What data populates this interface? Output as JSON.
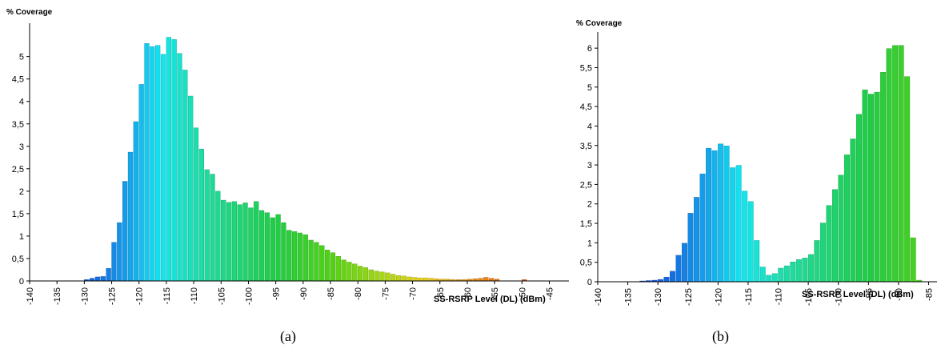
{
  "chart_data": [
    {
      "type": "bar",
      "panel_caption": "(a)",
      "ylabel": "% Coverage",
      "xlabel": "SS-RSRP Level (DL) (dBm)",
      "xlim": [
        -140,
        -42
      ],
      "ylim": [
        0,
        5.6
      ],
      "x_ticks": [
        -140,
        -135,
        -130,
        -125,
        -120,
        -115,
        -110,
        -105,
        -100,
        -95,
        -90,
        -85,
        -80,
        -75,
        -70,
        -65,
        -60,
        -55,
        -50,
        -45
      ],
      "x_tick_labels": [
        "-140",
        "-135",
        "-130",
        "-125",
        "-120",
        "-115",
        "-110",
        "-105",
        "-100",
        "-95",
        "-90",
        "-85",
        "-80",
        "-75",
        "-70",
        "-65",
        "-60",
        "-55",
        "-50",
        "-45"
      ],
      "y_ticks": [
        0,
        0.5,
        1,
        1.5,
        2,
        2.5,
        3,
        3.5,
        4,
        4.5,
        5
      ],
      "y_tick_labels": [
        "0",
        "0,5",
        "1",
        "1,5",
        "2",
        "2,5",
        "3",
        "3,5",
        "4",
        "4,5",
        "5"
      ],
      "bin_start": -130,
      "bin_width": 1,
      "values": [
        0.03,
        0.06,
        0.09,
        0.1,
        0.28,
        0.86,
        1.3,
        2.22,
        2.87,
        3.55,
        4.38,
        5.29,
        5.22,
        5.25,
        5.05,
        5.43,
        5.38,
        5.07,
        4.7,
        4.12,
        3.41,
        2.94,
        2.48,
        2.38,
        2.0,
        1.8,
        1.75,
        1.77,
        1.7,
        1.74,
        1.63,
        1.77,
        1.57,
        1.52,
        1.41,
        1.48,
        1.3,
        1.13,
        1.1,
        1.07,
        1.03,
        0.91,
        0.86,
        0.79,
        0.69,
        0.63,
        0.55,
        0.47,
        0.42,
        0.38,
        0.33,
        0.3,
        0.25,
        0.22,
        0.2,
        0.18,
        0.15,
        0.12,
        0.11,
        0.09,
        0.08,
        0.07,
        0.07,
        0.06,
        0.05,
        0.04,
        0.04,
        0.03,
        0.03,
        0.03,
        0.04,
        0.05,
        0.06,
        0.08,
        0.06,
        0.04,
        0.0,
        0.0,
        0.0,
        0.0,
        0.03
      ]
    },
    {
      "type": "bar",
      "panel_caption": "(b)",
      "ylabel": "% Coverage",
      "xlabel": "SS-RSRP Level (DL) (dBm)",
      "xlim": [
        -140,
        -84
      ],
      "ylim": [
        0,
        6.25
      ],
      "x_ticks": [
        -140,
        -135,
        -130,
        -125,
        -120,
        -115,
        -110,
        -105,
        -100,
        -95,
        -90,
        -85
      ],
      "x_tick_labels": [
        "-140",
        "-135",
        "-130",
        "-125",
        "-120",
        "-115",
        "-110",
        "-105",
        "-100",
        "-95",
        "-90",
        "-85"
      ],
      "y_ticks": [
        0,
        0.5,
        1,
        1.5,
        2,
        2.5,
        3,
        3.5,
        4,
        4.5,
        5,
        5.5,
        6
      ],
      "y_tick_labels": [
        "0",
        "0,5",
        "1",
        "1,5",
        "2",
        "2,5",
        "3",
        "3,5",
        "4",
        "4,5",
        "5",
        "5,5",
        "6"
      ],
      "bin_start": -133,
      "bin_width": 1,
      "values": [
        0.02,
        0.03,
        0.04,
        0.06,
        0.12,
        0.27,
        0.68,
        0.99,
        1.76,
        2.17,
        2.77,
        3.43,
        3.37,
        3.54,
        3.49,
        2.93,
        2.99,
        2.33,
        2.06,
        1.06,
        0.38,
        0.17,
        0.21,
        0.35,
        0.41,
        0.51,
        0.57,
        0.61,
        0.7,
        1.06,
        1.51,
        1.96,
        2.37,
        2.74,
        3.26,
        3.67,
        4.3,
        4.93,
        4.82,
        4.87,
        5.38,
        5.99,
        6.07,
        6.07,
        5.27,
        1.13,
        0.04
      ]
    }
  ]
}
